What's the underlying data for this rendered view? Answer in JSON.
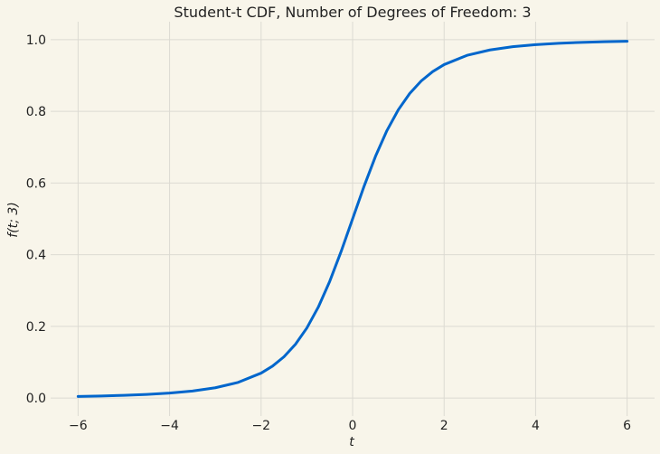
{
  "chart_data": {
    "type": "line",
    "title": "Student-t CDF, Number of Degrees of Freedom: 3",
    "xlabel": "t",
    "ylabel": "f(t; 3)",
    "xlim": [
      -6.6,
      6.6
    ],
    "ylim": [
      -0.05,
      1.05
    ],
    "x_ticks": [
      -6,
      -4,
      -2,
      0,
      2,
      4,
      6
    ],
    "x_tick_labels": [
      "−6",
      "−4",
      "−2",
      "0",
      "2",
      "4",
      "6"
    ],
    "y_ticks": [
      0.0,
      0.2,
      0.4,
      0.6,
      0.8,
      1.0
    ],
    "y_tick_labels": [
      "0.0",
      "0.2",
      "0.4",
      "0.6",
      "0.8",
      "1.0"
    ],
    "grid": true,
    "series": [
      {
        "color": "#0066cc",
        "x": [
          -6,
          -5.5,
          -5,
          -4.5,
          -4,
          -3.5,
          -3,
          -2.5,
          -2,
          -1.75,
          -1.5,
          -1.25,
          -1,
          -0.75,
          -0.5,
          -0.25,
          0,
          0.25,
          0.5,
          0.75,
          1,
          1.25,
          1.5,
          1.75,
          2,
          2.5,
          3,
          3.5,
          4,
          4.5,
          5,
          5.5,
          6
        ],
        "y": [
          0.0046,
          0.0059,
          0.0077,
          0.0102,
          0.014,
          0.0198,
          0.0288,
          0.0439,
          0.0697,
          0.0892,
          0.1153,
          0.15,
          0.1955,
          0.2538,
          0.3257,
          0.4093,
          0.5,
          0.5907,
          0.6743,
          0.7462,
          0.8045,
          0.85,
          0.8847,
          0.9108,
          0.9303,
          0.9561,
          0.9712,
          0.9802,
          0.986,
          0.9898,
          0.9923,
          0.9941,
          0.9954
        ]
      }
    ]
  }
}
